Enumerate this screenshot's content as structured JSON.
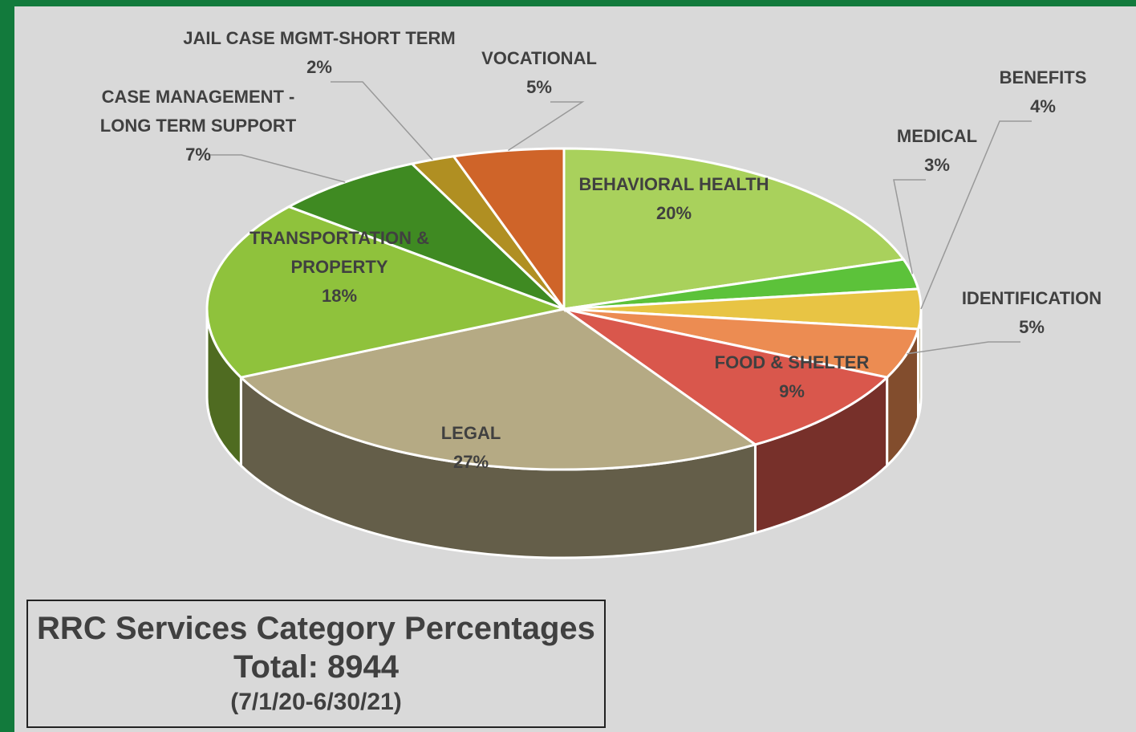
{
  "chart_data": {
    "type": "pie",
    "title": "RRC Services Category Percentages",
    "subtitle": "Total: 8944",
    "date_range": "(7/1/20-6/30/21)",
    "categories": [
      "BEHAVIORAL HEALTH",
      "MEDICAL",
      "BENEFITS",
      "IDENTIFICATION",
      "FOOD & SHELTER",
      "LEGAL",
      "TRANSPORTATION & PROPERTY",
      "CASE MANAGEMENT - LONG TERM SUPPORT",
      "JAIL CASE MGMT-SHORT TERM",
      "VOCATIONAL"
    ],
    "values": [
      20,
      3,
      4,
      5,
      9,
      27,
      18,
      7,
      2,
      5
    ],
    "value_labels": [
      "20%",
      "3%",
      "4%",
      "5%",
      "9%",
      "27%",
      "18%",
      "7%",
      "2%",
      "5%"
    ],
    "colors": [
      "#a9d15c",
      "#5cc23a",
      "#e8c444",
      "#ec8c52",
      "#d9574c",
      "#b5aa84",
      "#8fc23c",
      "#3f8a22",
      "#b08f22",
      "#cf6429"
    ]
  }
}
